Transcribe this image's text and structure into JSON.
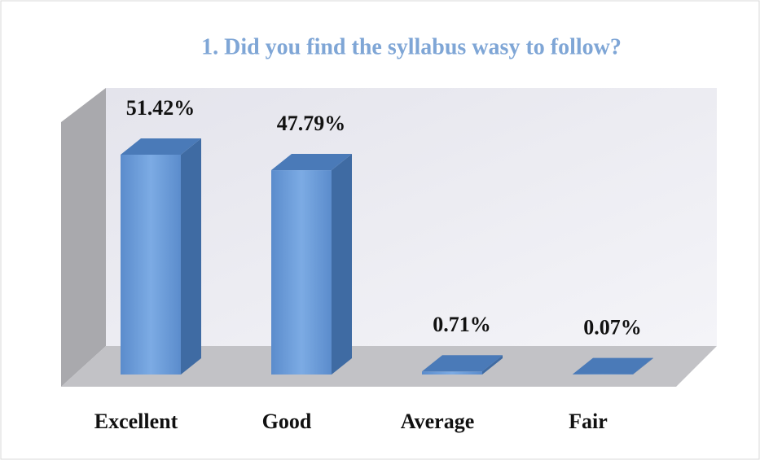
{
  "chart_data": {
    "type": "bar3d",
    "title": "1. Did you find the syllabus wasy to follow?",
    "categories": [
      "Excellent",
      "Good",
      "Average",
      "Fair"
    ],
    "values": [
      51.42,
      47.79,
      0.71,
      0.07
    ],
    "value_labels": [
      "51.42%",
      "47.79%",
      "0.71%",
      "0.07%"
    ],
    "color": "#6d9edb"
  }
}
